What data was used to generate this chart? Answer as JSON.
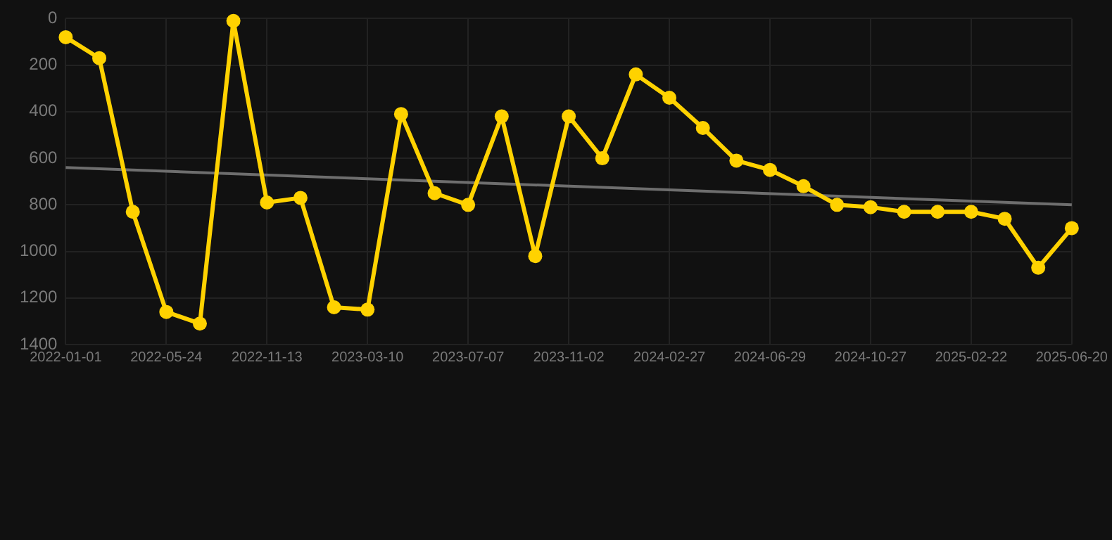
{
  "chart_data": {
    "type": "line",
    "categories": [
      "2022-01-01",
      null,
      null,
      "2022-05-24",
      null,
      null,
      "2022-11-13",
      null,
      null,
      "2023-03-10",
      null,
      null,
      "2023-07-07",
      null,
      null,
      "2023-11-02",
      null,
      null,
      "2024-02-27",
      null,
      null,
      "2024-06-29",
      null,
      null,
      "2024-10-27",
      null,
      null,
      "2025-02-22",
      null,
      null,
      "2025-06-20"
    ],
    "series": [
      {
        "color": "#ffd200",
        "values": [
          80,
          170,
          830,
          1260,
          1310,
          10,
          790,
          770,
          1240,
          1250,
          410,
          750,
          800,
          420,
          1020,
          420,
          600,
          240,
          340,
          470,
          610,
          650,
          720,
          800,
          810,
          830,
          830,
          830,
          860,
          1070,
          900
        ]
      },
      {
        "type": "line",
        "color": "#6e6e6e",
        "marker": "none",
        "values": [
          640,
          null,
          null,
          null,
          null,
          null,
          null,
          null,
          null,
          null,
          null,
          null,
          null,
          null,
          null,
          null,
          null,
          null,
          null,
          null,
          null,
          null,
          null,
          null,
          null,
          null,
          null,
          null,
          null,
          null,
          800
        ]
      }
    ],
    "ylim": [
      1400,
      0
    ],
    "yticks": [
      0,
      200,
      400,
      600,
      800,
      1000,
      1200,
      1400
    ],
    "grid": true,
    "legend": false,
    "marker": "circle",
    "line_style": "solid"
  }
}
